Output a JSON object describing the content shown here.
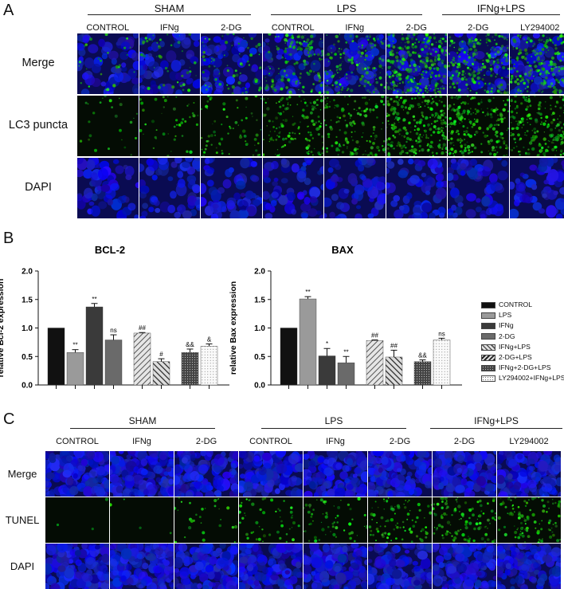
{
  "panel_a": {
    "letter": "A",
    "groups": [
      "SHAM",
      "LPS",
      "IFNg+LPS"
    ],
    "columns": [
      "CONTROL",
      "IFNg",
      "2-DG",
      "CONTROL",
      "IFNg",
      "2-DG",
      "2-DG",
      "LY294002"
    ],
    "rows": [
      "Merge",
      "LC3 puncta",
      "DAPI"
    ]
  },
  "panel_b": {
    "letter": "B"
  },
  "panel_c": {
    "letter": "C",
    "groups": [
      "SHAM",
      "LPS",
      "IFNg+LPS"
    ],
    "columns": [
      "CONTROL",
      "IFNg",
      "2-DG",
      "CONTROL",
      "IFNg",
      "2-DG",
      "2-DG",
      "LY294002"
    ],
    "rows": [
      "Merge",
      "TUNEL",
      "DAPI"
    ]
  },
  "legend": [
    {
      "label": "CONTROL",
      "color": "#111111",
      "pattern": "solid"
    },
    {
      "label": "LPS",
      "color": "#9a9a9a",
      "pattern": "solid"
    },
    {
      "label": "IFNg",
      "color": "#3a3a3a",
      "pattern": "solid"
    },
    {
      "label": "2-DG",
      "color": "#6a6a6a",
      "pattern": "solid"
    },
    {
      "label": "IFNg+LPS",
      "color": "#cccccc",
      "pattern": "hatch-light"
    },
    {
      "label": "2-DG+LPS",
      "color": "#777777",
      "pattern": "hatch-dark"
    },
    {
      "label": "IFNg+2-DG+LPS",
      "color": "#555555",
      "pattern": "dots-dark"
    },
    {
      "label": "LY294002+IFNg+LPS",
      "color": "#f2f2f2",
      "pattern": "dots-light"
    }
  ],
  "chart_data": [
    {
      "type": "bar",
      "title": "BCL-2",
      "ylabel": "relative Bcl-2 expression",
      "ylim": [
        0,
        2.0
      ],
      "yticks": [
        "0.0",
        "0.5",
        "1.0",
        "1.5",
        "2.0"
      ],
      "categories": [
        "CONTROL",
        "LPS",
        "IFNg",
        "2-DG",
        "IFNg+LPS",
        "2-DG+LPS",
        "IFNg+2-DG+LPS",
        "LY294002+IFNg+LPS"
      ],
      "values": [
        1.0,
        0.57,
        1.37,
        0.79,
        0.91,
        0.41,
        0.57,
        0.68
      ],
      "errors": [
        0,
        0.05,
        0.06,
        0.09,
        0.01,
        0.05,
        0.06,
        0.04
      ],
      "annotations": [
        "",
        "**",
        "**",
        "ns",
        "##",
        "#",
        "&&",
        "&"
      ]
    },
    {
      "type": "bar",
      "title": "BAX",
      "ylabel": "relative Bax expression",
      "ylim": [
        0,
        2.0
      ],
      "yticks": [
        "0.0",
        "0.5",
        "1.0",
        "1.5",
        "2.0"
      ],
      "categories": [
        "CONTROL",
        "LPS",
        "IFNg",
        "2-DG",
        "IFNg+LPS",
        "2-DG+LPS",
        "IFNg+2-DG+LPS",
        "LY294002+IFNg+LPS"
      ],
      "values": [
        1.0,
        1.51,
        0.51,
        0.39,
        0.78,
        0.49,
        0.41,
        0.79
      ],
      "errors": [
        0,
        0.04,
        0.13,
        0.11,
        0.01,
        0.12,
        0.03,
        0.03
      ],
      "annotations": [
        "",
        "**",
        "*",
        "**",
        "##",
        "##",
        "&&",
        "ns"
      ]
    }
  ]
}
